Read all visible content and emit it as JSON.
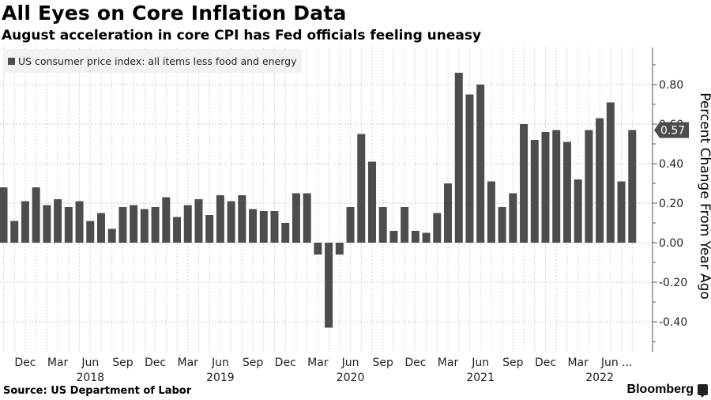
{
  "header": {
    "title": "All Eyes on Core Inflation Data",
    "subtitle": "August acceleration in core CPI has Fed officials feeling uneasy"
  },
  "footer": {
    "source": "Source: US Department of Labor",
    "brand": "Bloomberg"
  },
  "chart_data": {
    "type": "bar",
    "title": "All Eyes on Core Inflation Data",
    "subtitle": "August acceleration in core CPI has Fed officials feeling uneasy",
    "xlabel": "",
    "ylabel": "Percent Change From Year Ago",
    "ylim": [
      -0.55,
      0.98
    ],
    "yticks": [
      -0.4,
      -0.2,
      0.0,
      0.2,
      0.4,
      0.6,
      0.8
    ],
    "ytick_labels": [
      "-0.40",
      "-0.20",
      "0.00",
      "0.20",
      "0.40",
      "0.60",
      "0.80"
    ],
    "grid": true,
    "y_axis_side": "right",
    "legend": {
      "position": "top-left",
      "entries": [
        "US consumer price index: all items less food and energy"
      ]
    },
    "series": [
      {
        "name": "US consumer price index: all items less food and energy",
        "color": "#4d4d4d",
        "values": [
          0.28,
          0.11,
          0.21,
          0.28,
          0.19,
          0.22,
          0.18,
          0.21,
          0.11,
          0.15,
          0.07,
          0.18,
          0.19,
          0.17,
          0.18,
          0.23,
          0.13,
          0.19,
          0.22,
          0.14,
          0.24,
          0.21,
          0.24,
          0.17,
          0.16,
          0.16,
          0.1,
          0.25,
          0.25,
          -0.06,
          -0.43,
          -0.06,
          0.18,
          0.55,
          0.41,
          0.18,
          0.06,
          0.18,
          0.06,
          0.05,
          0.15,
          0.3,
          0.86,
          0.75,
          0.8,
          0.31,
          0.18,
          0.25,
          0.6,
          0.52,
          0.56,
          0.57,
          0.51,
          0.32,
          0.57,
          0.63,
          0.71,
          0.31,
          0.57
        ]
      }
    ],
    "x": [
      "Oct 2017",
      "Nov 2017",
      "Dec 2017",
      "Jan 2018",
      "Feb 2018",
      "Mar 2018",
      "Apr 2018",
      "May 2018",
      "Jun 2018",
      "Jul 2018",
      "Aug 2018",
      "Sep 2018",
      "Oct 2018",
      "Nov 2018",
      "Dec 2018",
      "Jan 2019",
      "Feb 2019",
      "Mar 2019",
      "Apr 2019",
      "May 2019",
      "Jun 2019",
      "Jul 2019",
      "Aug 2019",
      "Sep 2019",
      "Oct 2019",
      "Nov 2019",
      "Dec 2019",
      "Jan 2020",
      "Feb 2020",
      "Mar 2020",
      "Apr 2020",
      "May 2020",
      "Jun 2020",
      "Jul 2020",
      "Aug 2020",
      "Sep 2020",
      "Oct 2020",
      "Nov 2020",
      "Dec 2020",
      "Jan 2021",
      "Feb 2021",
      "Mar 2021",
      "Apr 2021",
      "May 2021",
      "Jun 2021",
      "Jul 2021",
      "Aug 2021",
      "Sep 2021",
      "Oct 2021",
      "Nov 2021",
      "Dec 2021",
      "Jan 2022",
      "Feb 2022",
      "Mar 2022",
      "Apr 2022",
      "May 2022",
      "Jun 2022",
      "Jul 2022",
      "Aug 2022"
    ],
    "xtick_labels": [
      {
        "index": 2,
        "label": "Dec"
      },
      {
        "index": 5,
        "label": "Mar"
      },
      {
        "index": 8,
        "label": "Jun"
      },
      {
        "index": 11,
        "label": "Sep"
      },
      {
        "index": 14,
        "label": "Dec"
      },
      {
        "index": 17,
        "label": "Mar"
      },
      {
        "index": 20,
        "label": "Jun"
      },
      {
        "index": 23,
        "label": "Sep"
      },
      {
        "index": 26,
        "label": "Dec"
      },
      {
        "index": 29,
        "label": "Mar"
      },
      {
        "index": 32,
        "label": "Jun"
      },
      {
        "index": 35,
        "label": "Sep"
      },
      {
        "index": 38,
        "label": "Dec"
      },
      {
        "index": 41,
        "label": "Mar"
      },
      {
        "index": 44,
        "label": "Jun"
      },
      {
        "index": 47,
        "label": "Sep"
      },
      {
        "index": 50,
        "label": "Dec"
      },
      {
        "index": 53,
        "label": "Mar"
      },
      {
        "index": 56,
        "label": "Jun ..."
      }
    ],
    "year_labels": [
      {
        "index": 8,
        "label": "2018"
      },
      {
        "index": 20,
        "label": "2019"
      },
      {
        "index": 32,
        "label": "2020"
      },
      {
        "index": 44,
        "label": "2021"
      },
      {
        "index": 55,
        "label": "2022"
      }
    ],
    "last_value_label": "0.57"
  }
}
